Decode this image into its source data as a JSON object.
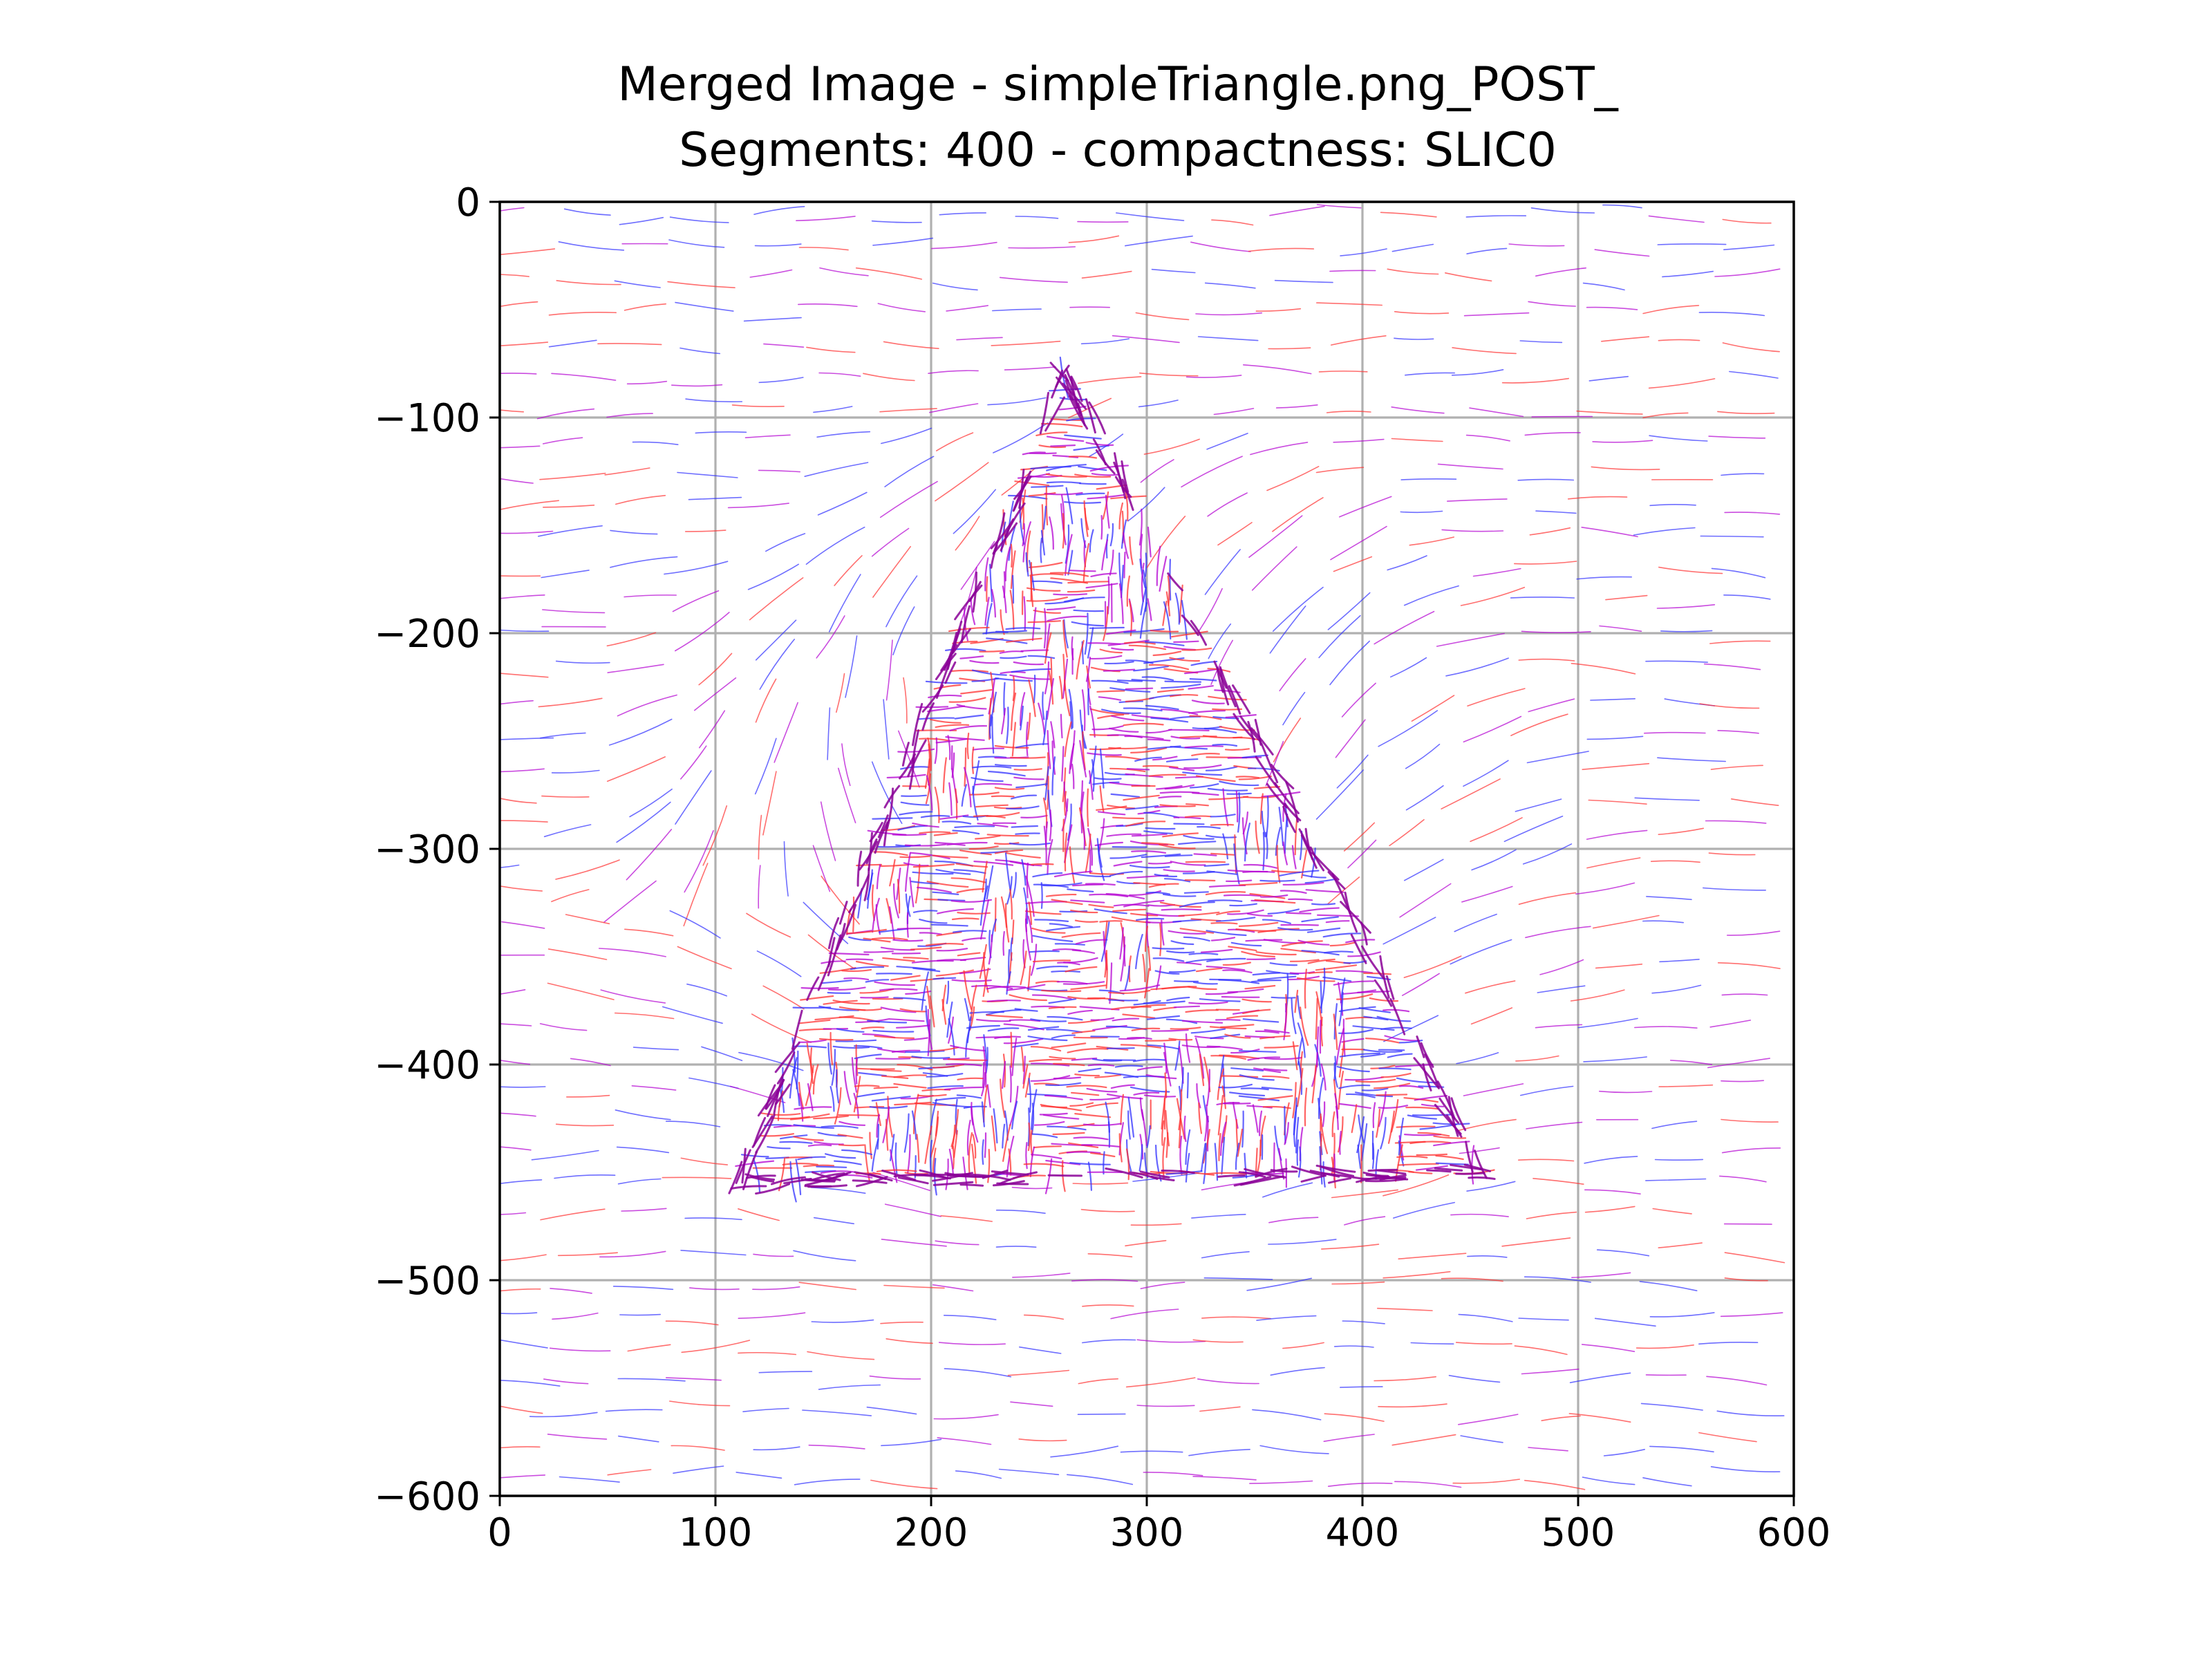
{
  "chart_data": {
    "type": "scatter",
    "title_lines": [
      "Merged Image - simpleTriangle.png_POST_",
      "Segments: 400 - compactness: SLIC0"
    ],
    "xlabel": "",
    "ylabel": "",
    "xlim": [
      0,
      600
    ],
    "ylim": [
      -600,
      0
    ],
    "x_ticks": [
      0,
      100,
      200,
      300,
      400,
      500,
      600
    ],
    "y_ticks": [
      0,
      -100,
      -200,
      -300,
      -400,
      -500,
      -600
    ],
    "x_tick_labels": [
      "0",
      "100",
      "200",
      "300",
      "400",
      "500",
      "600"
    ],
    "y_tick_labels": [
      "0",
      "−100",
      "−200",
      "−300",
      "−400",
      "−500",
      "−600"
    ],
    "grid": true,
    "series_colors": [
      "#ff3030",
      "#3030ff",
      "#b400d2"
    ],
    "triangle_region": {
      "apex": [
        262,
        -80
      ],
      "bottom_left": [
        112,
        -455
      ],
      "bottom_right": [
        455,
        -450
      ]
    },
    "segments": 400,
    "compactness": "SLIC0"
  }
}
